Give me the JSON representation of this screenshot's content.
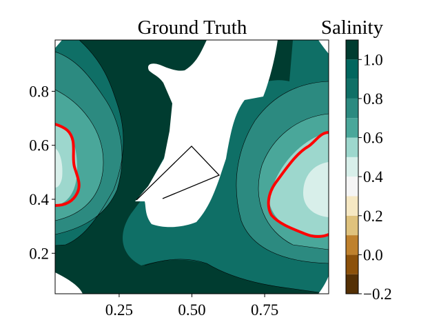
{
  "chart_data": {
    "type": "heatmap",
    "title": "Ground Truth",
    "xlabel": "",
    "ylabel": "",
    "xlim": [
      0.03,
      0.97
    ],
    "ylim": [
      0.05,
      0.99
    ],
    "x_ticks": [
      "0.25",
      "0.50",
      "0.75"
    ],
    "x_tick_values": [
      0.25,
      0.5,
      0.75
    ],
    "y_ticks": [
      "0.2",
      "0.4",
      "0.6",
      "0.8"
    ],
    "y_tick_values": [
      0.2,
      0.4,
      0.6,
      0.8
    ],
    "colorbar": {
      "label": "Salinity",
      "range": [
        -0.2,
        1.1
      ],
      "tick_labels": [
        "−0.2",
        "0.0",
        "0.2",
        "0.4",
        "0.6",
        "0.8",
        "1.0"
      ],
      "tick_values": [
        -0.2,
        0.0,
        0.2,
        0.4,
        0.6,
        0.8,
        1.0
      ],
      "levels": [
        -0.2,
        -0.1,
        0.0,
        0.1,
        0.2,
        0.3,
        0.4,
        0.5,
        0.6,
        0.7,
        0.8,
        0.9,
        1.0,
        1.1
      ],
      "colors": [
        "#543005",
        "#8c510a",
        "#bf812d",
        "#dfc27d",
        "#f6e8c3",
        "#f5f5f5",
        "#d8efea",
        "#9dd7cd",
        "#4aa79a",
        "#2c8a80",
        "#0f6f66",
        "#01665e",
        "#003c30"
      ]
    },
    "highlight_contour": {
      "level": 0.7,
      "color": "#ff0000"
    },
    "domain_colors": {
      "water": "#0f6f66",
      "deep": "#003c30",
      "land": "#ffffff"
    }
  }
}
